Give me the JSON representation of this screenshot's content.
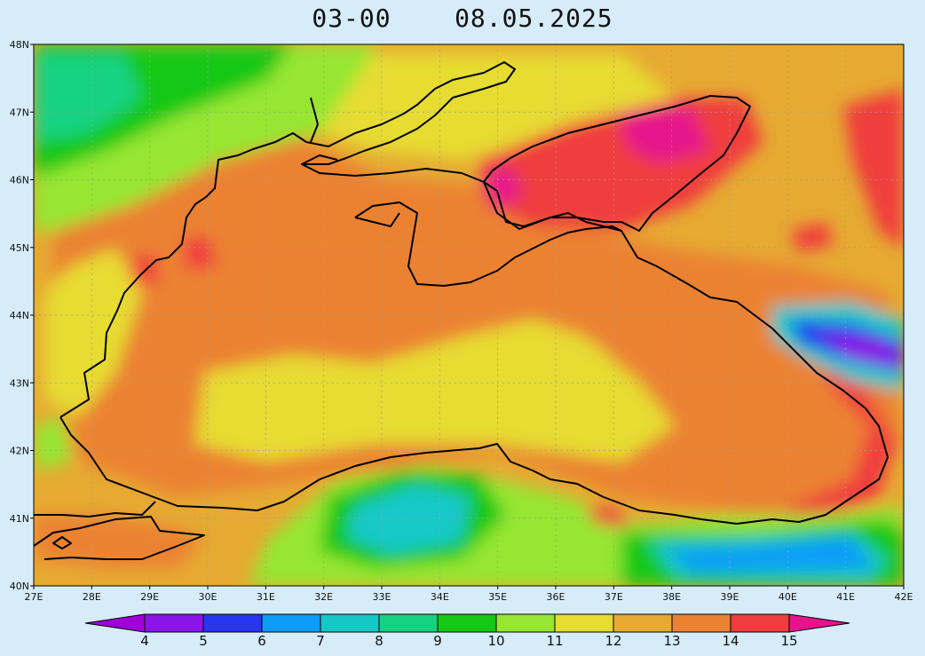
{
  "title": {
    "time": "03-00",
    "date": "08.05.2025"
  },
  "map": {
    "region": "Black Sea",
    "lon_range": [
      27,
      42
    ],
    "lat_range": [
      40,
      48
    ],
    "x_ticks": [
      "27E",
      "28E",
      "29E",
      "30E",
      "31E",
      "32E",
      "33E",
      "34E",
      "35E",
      "36E",
      "37E",
      "38E",
      "39E",
      "40E",
      "41E",
      "42E"
    ],
    "y_ticks": [
      "40N",
      "41N",
      "42N",
      "43N",
      "44N",
      "45N",
      "46N",
      "47N",
      "48N"
    ],
    "grid": "dotted"
  },
  "legend": {
    "levels": [
      "4",
      "5",
      "6",
      "7",
      "8",
      "9",
      "10",
      "11",
      "12",
      "13",
      "14",
      "15"
    ],
    "colors": [
      "#a000d8",
      "#8c14e6",
      "#2836f0",
      "#0c9cf8",
      "#14c8c8",
      "#14d282",
      "#14c814",
      "#96e632",
      "#e6dc32",
      "#e6aa32",
      "#eb8232",
      "#f03c3c",
      "#e6148c"
    ]
  }
}
